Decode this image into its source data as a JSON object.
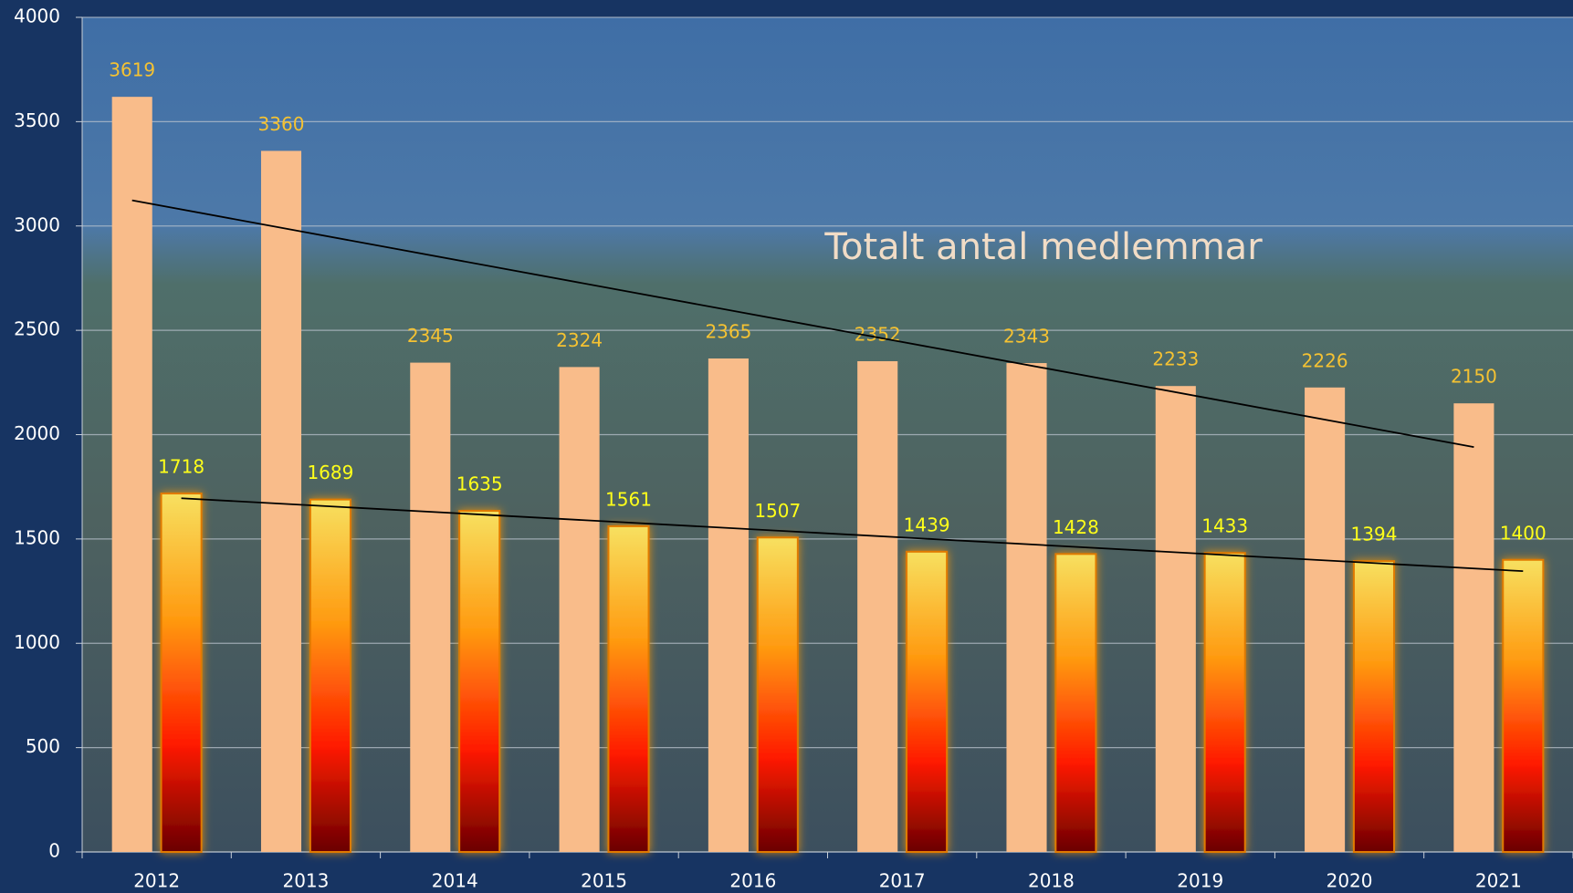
{
  "chart_data": {
    "type": "bar",
    "annotation": "Totalt antal medlemmar",
    "categories": [
      "2012",
      "2013",
      "2014",
      "2015",
      "2016",
      "2017",
      "2018",
      "2019",
      "2020",
      "2021"
    ],
    "series": [
      {
        "color": "#f9bc8a",
        "label_color": "#f5c232",
        "values": [
          3619,
          3360,
          2345,
          2324,
          2365,
          2352,
          2343,
          2233,
          2226,
          2150
        ]
      },
      {
        "color": "gradient-fire",
        "label_color": "#ffff1a",
        "values": [
          1718,
          1689,
          1635,
          1561,
          1507,
          1439,
          1428,
          1433,
          1394,
          1400
        ]
      }
    ],
    "ylim": [
      0,
      4000
    ],
    "yticks": [
      0,
      500,
      1000,
      1500,
      2000,
      2500,
      3000,
      3500,
      4000
    ],
    "grid": true,
    "trendline": true
  }
}
